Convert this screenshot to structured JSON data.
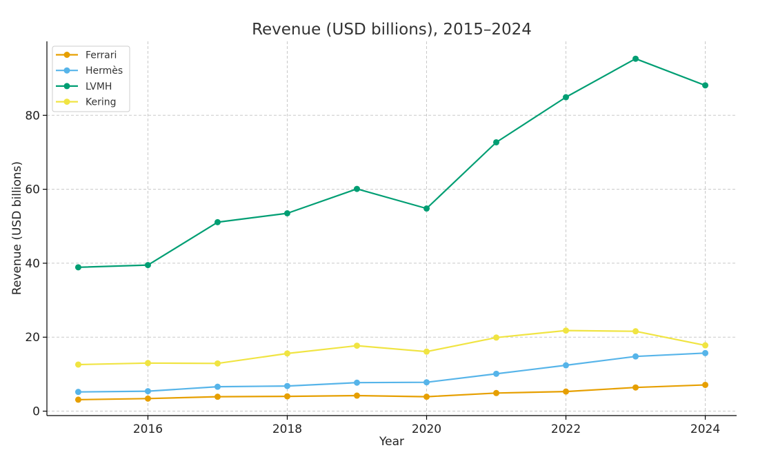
{
  "chart_data": {
    "type": "line",
    "title": "Revenue (USD billions), 2015–2024",
    "xlabel": "Year",
    "ylabel": "Revenue (USD billions)",
    "x": [
      2015,
      2016,
      2017,
      2018,
      2019,
      2020,
      2021,
      2022,
      2023,
      2024
    ],
    "xlim": [
      2014.55,
      2024.45
    ],
    "ylim": [
      -1.2,
      100
    ],
    "xticks": [
      2016,
      2018,
      2020,
      2022,
      2024
    ],
    "yticks": [
      0,
      20,
      40,
      60,
      80
    ],
    "grid": true,
    "legend_position": "top-left",
    "series": [
      {
        "name": "Ferrari",
        "color": "#E69F00",
        "values": [
          3.1,
          3.4,
          3.9,
          4.0,
          4.2,
          3.9,
          4.9,
          5.3,
          6.4,
          7.1
        ]
      },
      {
        "name": "Hermès",
        "color": "#56B4E9",
        "values": [
          5.2,
          5.4,
          6.6,
          6.8,
          7.7,
          7.8,
          10.1,
          12.4,
          14.8,
          15.7
        ]
      },
      {
        "name": "LVMH",
        "color": "#009E73",
        "values": [
          38.9,
          39.5,
          51.1,
          53.5,
          60.1,
          54.8,
          72.7,
          84.9,
          95.3,
          88.1
        ]
      },
      {
        "name": "Kering",
        "color": "#F0E442",
        "values": [
          12.6,
          13.0,
          12.9,
          15.6,
          17.7,
          16.1,
          19.9,
          21.8,
          21.6,
          17.8
        ]
      }
    ]
  }
}
